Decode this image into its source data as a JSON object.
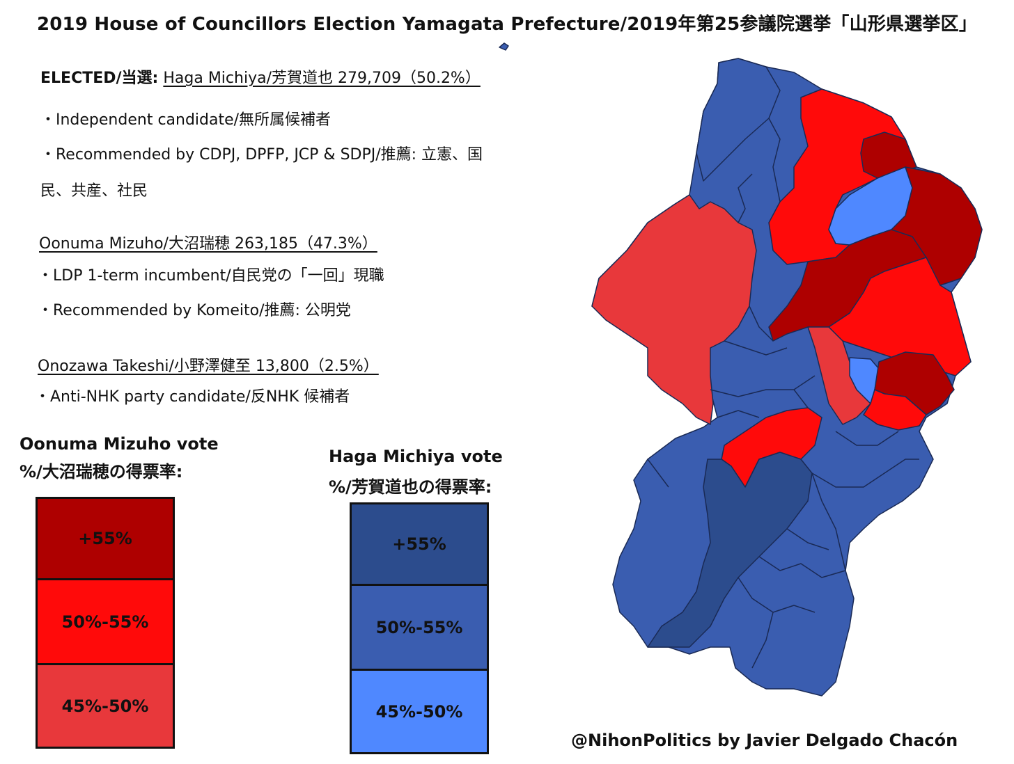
{
  "title": "2019 House of Councillors Election Yamagata Prefecture/2019年第25参議院選挙「山形県選挙区」",
  "elected": {
    "label": "ELECTED/当選:",
    "headline": "Haga Michiya/芳賀道也 279,709（50.2%）",
    "bullet1": "・Independent candidate/無所属候補者",
    "bullet2a": "・Recommended by CDPJ, DPFP, JCP & SDPJ/推薦: 立憲、国",
    "bullet2b": "民、共産、社民"
  },
  "second": {
    "headline": "Oonuma Mizuho/大沼瑞穂 263,185（47.3%）",
    "bullet1": "・LDP 1-term incumbent/自民党の「一回」現職",
    "bullet2": "・Recommended by Komeito/推薦: 公明党"
  },
  "third": {
    "headline": "Onozawa Takeshi/小野澤健至 13,800（2.5%）",
    "bullet1": "・Anti-NHK party candidate/反NHK 候補者"
  },
  "legend_oonuma": {
    "title1": "Oonuma Mizuho vote",
    "title2": "%/大沼瑞穂の得票率:",
    "levels": [
      {
        "label": "+55%",
        "color": "#ae0000"
      },
      {
        "label": "50%-55%",
        "color": "#ff0a0a"
      },
      {
        "label": "45%-50%",
        "color": "#e8383b"
      }
    ]
  },
  "legend_haga": {
    "title1": "Haga Michiya vote",
    "title2": "%/芳賀道也の得票率:",
    "levels": [
      {
        "label": "+55%",
        "color": "#2c4c8d"
      },
      {
        "label": "50%-55%",
        "color": "#3a5db0"
      },
      {
        "label": "45%-50%",
        "color": "#4f88ff"
      }
    ]
  },
  "credit": "@NihonPolitics by Javier Delgado Chacón",
  "map_colors": {
    "oonuma_55": "#ae0000",
    "oonuma_50": "#ff0a0a",
    "oonuma_45": "#e8383b",
    "haga_55": "#2c4c8d",
    "haga_50": "#3a5db0",
    "haga_45": "#4f88ff",
    "border": "#1a2a55"
  }
}
